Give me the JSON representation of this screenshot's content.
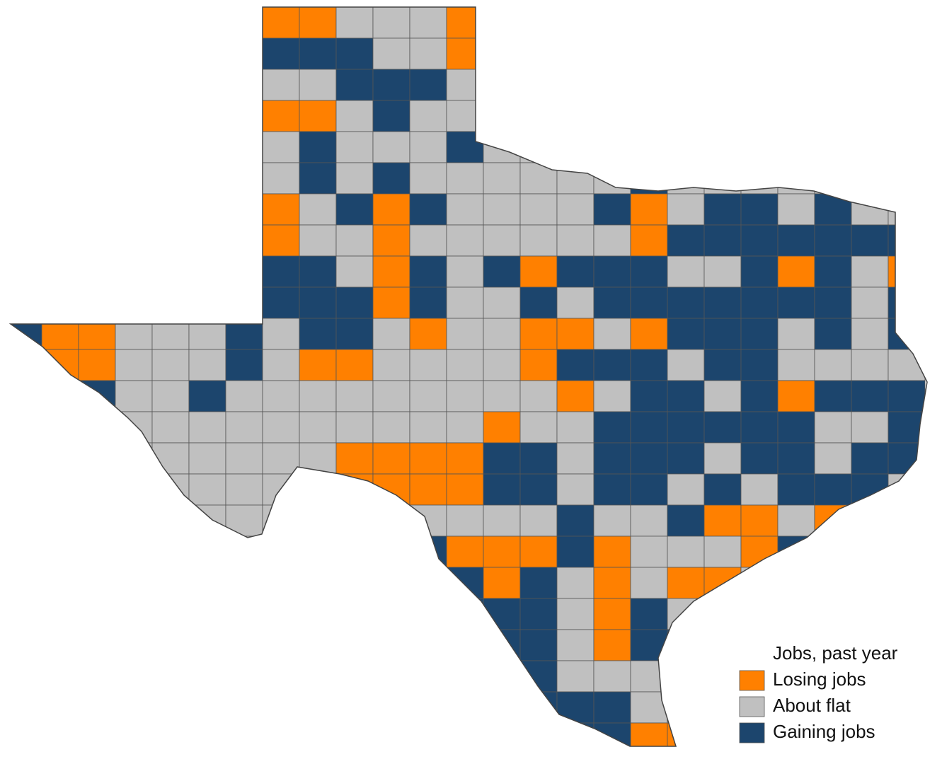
{
  "legend": {
    "title": "Jobs, past year",
    "items": [
      {
        "label": "Losing jobs",
        "color": "#ff8000"
      },
      {
        "label": "About flat",
        "color": "#c0c0c0"
      },
      {
        "label": "Gaining jobs",
        "color": "#1c456d"
      }
    ]
  }
}
